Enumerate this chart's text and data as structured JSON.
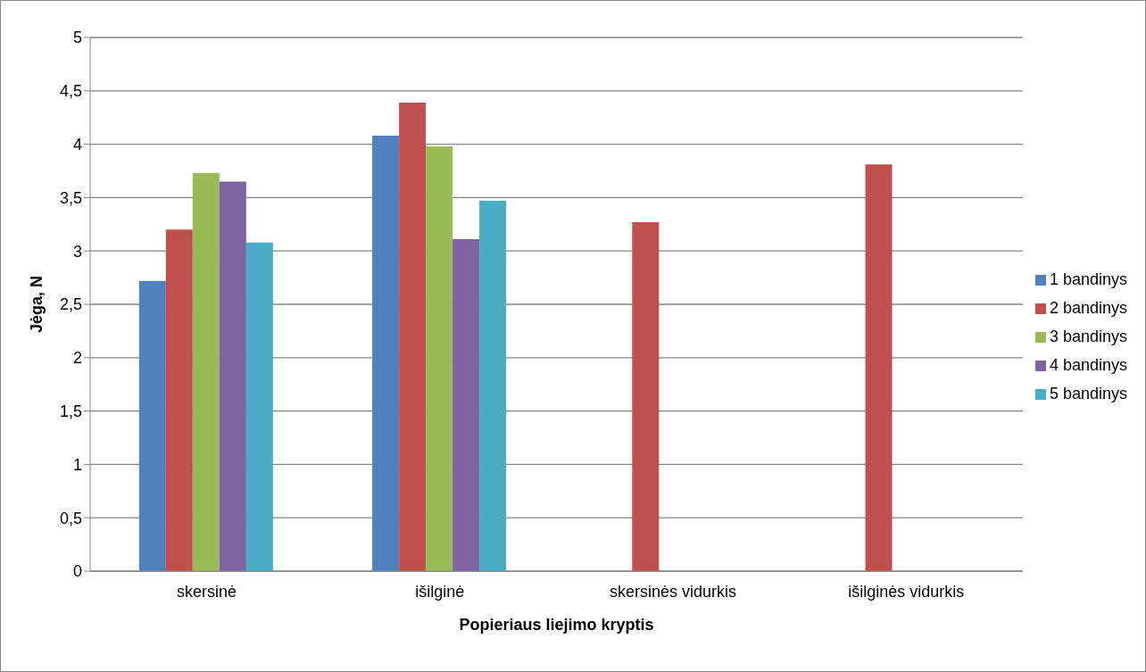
{
  "chart_data": {
    "type": "bar",
    "xlabel": "Popieriaus liejimo kryptis",
    "ylabel": "Jėga, N",
    "categories": [
      "skersinė",
      "išilginė",
      "skersinės vidurkis",
      "išilginės vidurkis"
    ],
    "series": [
      {
        "name": "1 bandinys",
        "color": "#4f81bd",
        "values": [
          2.72,
          4.08,
          null,
          null
        ]
      },
      {
        "name": "2 bandinys",
        "color": "#c0504d",
        "values": [
          3.2,
          4.39,
          3.27,
          3.81
        ]
      },
      {
        "name": "3 bandinys",
        "color": "#9bbb59",
        "values": [
          3.73,
          3.98,
          null,
          null
        ]
      },
      {
        "name": "4 bandinys",
        "color": "#8064a2",
        "values": [
          3.65,
          3.11,
          null,
          null
        ]
      },
      {
        "name": "5 bandinys",
        "color": "#4bacc6",
        "values": [
          3.08,
          3.47,
          null,
          null
        ]
      }
    ],
    "ylim": [
      0,
      5
    ],
    "yticks": [
      {
        "value": 0,
        "label": "0"
      },
      {
        "value": 0.5,
        "label": "0,5"
      },
      {
        "value": 1,
        "label": "1"
      },
      {
        "value": 1.5,
        "label": "1,5"
      },
      {
        "value": 2,
        "label": "2"
      },
      {
        "value": 2.5,
        "label": "2,5"
      },
      {
        "value": 3,
        "label": "3"
      },
      {
        "value": 3.5,
        "label": "3,5"
      },
      {
        "value": 4,
        "label": "4"
      },
      {
        "value": 4.5,
        "label": "4,5"
      },
      {
        "value": 5,
        "label": "5"
      }
    ],
    "grid": "y",
    "legend": "right"
  }
}
